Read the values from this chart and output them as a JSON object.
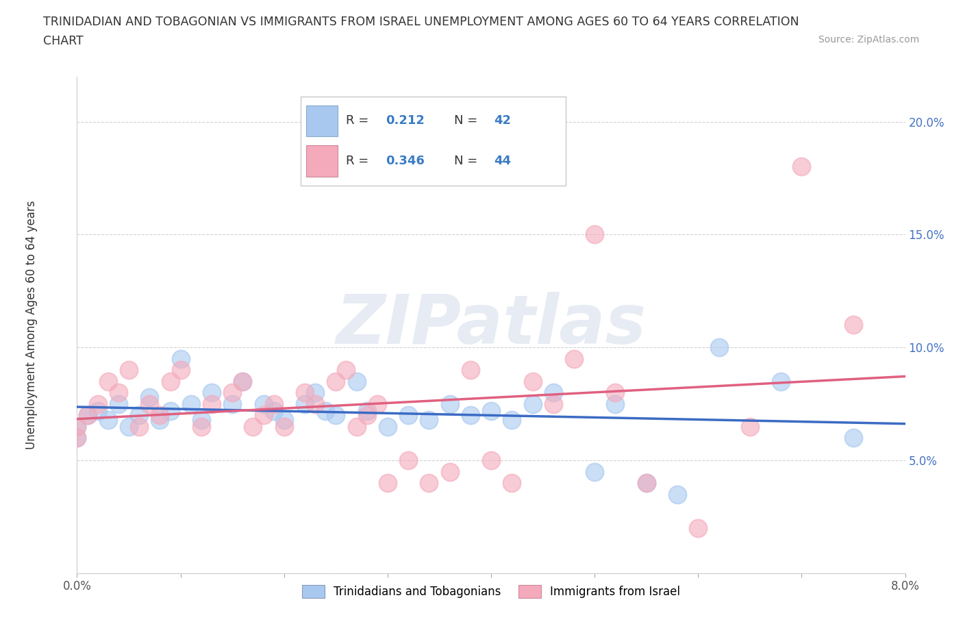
{
  "title_line1": "TRINIDADIAN AND TOBAGONIAN VS IMMIGRANTS FROM ISRAEL UNEMPLOYMENT AMONG AGES 60 TO 64 YEARS CORRELATION",
  "title_line2": "CHART",
  "source": "Source: ZipAtlas.com",
  "ylabel": "Unemployment Among Ages 60 to 64 years",
  "xlim": [
    0.0,
    0.08
  ],
  "ylim": [
    0.0,
    0.22
  ],
  "xticks": [
    0.0,
    0.01,
    0.02,
    0.03,
    0.04,
    0.05,
    0.06,
    0.07,
    0.08
  ],
  "xticklabels": [
    "0.0%",
    "",
    "",
    "",
    "",
    "",
    "",
    "",
    "8.0%"
  ],
  "yticks": [
    0.0,
    0.05,
    0.1,
    0.15,
    0.2
  ],
  "yticklabels": [
    "",
    "5.0%",
    "10.0%",
    "15.0%",
    "20.0%"
  ],
  "blue_color": "#A8C8F0",
  "pink_color": "#F4AABB",
  "blue_line_color": "#3B6BC4",
  "pink_line_color": "#E06080",
  "legend_text_color": "#3B7BC4",
  "R_blue": 0.212,
  "N_blue": 42,
  "R_pink": 0.346,
  "N_pink": 44,
  "legend_label_blue": "Trinidadians and Tobagonians",
  "legend_label_pink": "Immigrants from Israel",
  "watermark": "ZIPatlas",
  "blue_scatter_x": [
    0.0,
    0.0,
    0.001,
    0.002,
    0.003,
    0.004,
    0.005,
    0.006,
    0.007,
    0.008,
    0.009,
    0.01,
    0.011,
    0.012,
    0.013,
    0.015,
    0.016,
    0.018,
    0.019,
    0.02,
    0.022,
    0.023,
    0.024,
    0.025,
    0.027,
    0.028,
    0.03,
    0.032,
    0.034,
    0.036,
    0.038,
    0.04,
    0.042,
    0.044,
    0.046,
    0.05,
    0.052,
    0.055,
    0.058,
    0.062,
    0.068,
    0.075
  ],
  "blue_scatter_y": [
    0.065,
    0.06,
    0.07,
    0.072,
    0.068,
    0.075,
    0.065,
    0.07,
    0.078,
    0.068,
    0.072,
    0.095,
    0.075,
    0.068,
    0.08,
    0.075,
    0.085,
    0.075,
    0.072,
    0.068,
    0.075,
    0.08,
    0.072,
    0.07,
    0.085,
    0.072,
    0.065,
    0.07,
    0.068,
    0.075,
    0.07,
    0.072,
    0.068,
    0.075,
    0.08,
    0.045,
    0.075,
    0.04,
    0.035,
    0.1,
    0.085,
    0.06
  ],
  "pink_scatter_x": [
    0.0,
    0.0,
    0.001,
    0.002,
    0.003,
    0.004,
    0.005,
    0.006,
    0.007,
    0.008,
    0.009,
    0.01,
    0.012,
    0.013,
    0.015,
    0.016,
    0.017,
    0.018,
    0.019,
    0.02,
    0.022,
    0.023,
    0.025,
    0.026,
    0.027,
    0.028,
    0.029,
    0.03,
    0.032,
    0.034,
    0.036,
    0.038,
    0.04,
    0.042,
    0.044,
    0.046,
    0.048,
    0.05,
    0.052,
    0.055,
    0.06,
    0.065,
    0.07,
    0.075
  ],
  "pink_scatter_y": [
    0.065,
    0.06,
    0.07,
    0.075,
    0.085,
    0.08,
    0.09,
    0.065,
    0.075,
    0.07,
    0.085,
    0.09,
    0.065,
    0.075,
    0.08,
    0.085,
    0.065,
    0.07,
    0.075,
    0.065,
    0.08,
    0.075,
    0.085,
    0.09,
    0.065,
    0.07,
    0.075,
    0.04,
    0.05,
    0.04,
    0.045,
    0.09,
    0.05,
    0.04,
    0.085,
    0.075,
    0.095,
    0.15,
    0.08,
    0.04,
    0.02,
    0.065,
    0.18,
    0.11
  ],
  "background_color": "#FFFFFF",
  "grid_color": "#CCCCCC"
}
